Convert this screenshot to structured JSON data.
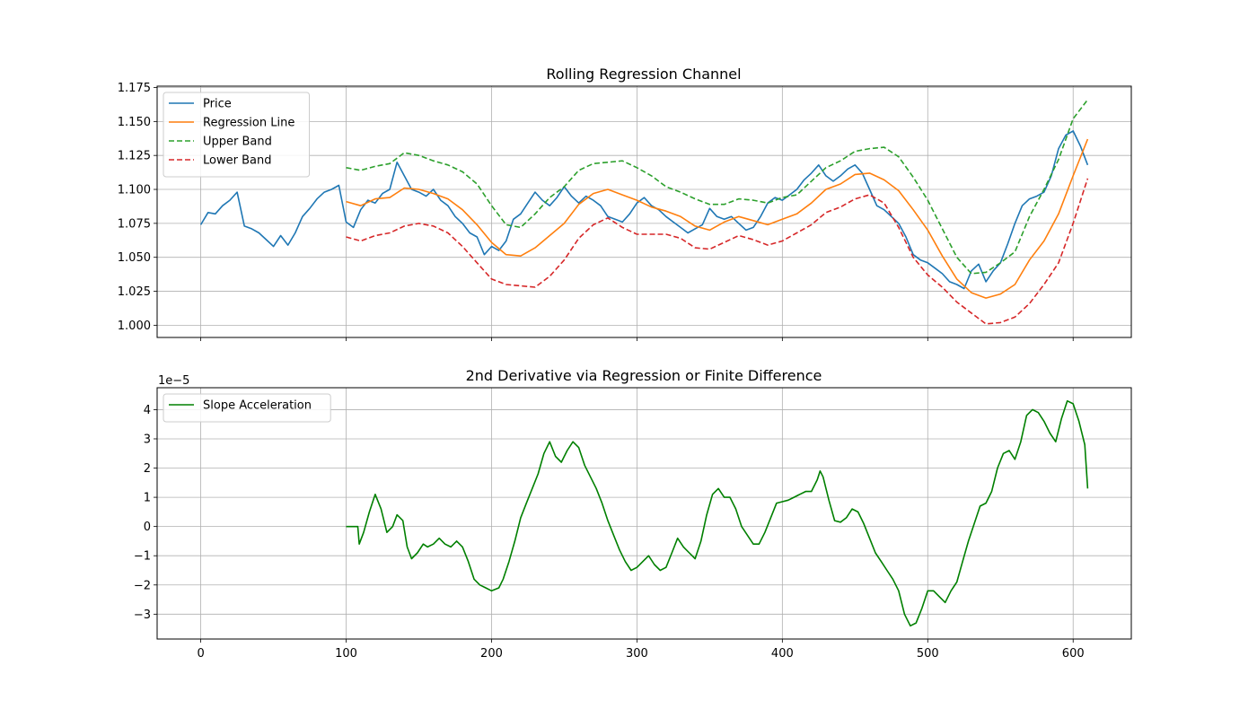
{
  "chart_data": [
    {
      "type": "line",
      "title": "Rolling Regression Channel",
      "xlabel": "",
      "ylabel": "",
      "xlim": [
        -30,
        640
      ],
      "ylim": [
        0.991,
        1.176
      ],
      "x_ticks": [
        0,
        100,
        200,
        300,
        400,
        500,
        600
      ],
      "show_x_tick_labels": false,
      "y_ticks": [
        1.0,
        1.025,
        1.05,
        1.075,
        1.1,
        1.125,
        1.15,
        1.175
      ],
      "y_tick_labels": [
        "1.000",
        "1.025",
        "1.050",
        "1.075",
        "1.100",
        "1.125",
        "1.150",
        "1.175"
      ],
      "grid": true,
      "legend_position": "upper-left",
      "series": [
        {
          "name": "Price",
          "color": "#1f77b4",
          "dash": "solid",
          "x": [
            0,
            5,
            10,
            15,
            20,
            25,
            30,
            35,
            40,
            45,
            50,
            55,
            60,
            65,
            70,
            75,
            80,
            85,
            90,
            95,
            100,
            105,
            110,
            115,
            120,
            125,
            130,
            135,
            140,
            145,
            150,
            155,
            160,
            165,
            170,
            175,
            180,
            185,
            190,
            195,
            200,
            205,
            210,
            215,
            220,
            225,
            230,
            235,
            240,
            245,
            250,
            255,
            260,
            265,
            270,
            275,
            280,
            285,
            290,
            295,
            300,
            305,
            310,
            315,
            320,
            325,
            330,
            335,
            340,
            345,
            350,
            355,
            360,
            365,
            370,
            375,
            380,
            385,
            390,
            395,
            400,
            405,
            410,
            415,
            420,
            425,
            430,
            435,
            440,
            445,
            450,
            455,
            460,
            465,
            470,
            475,
            480,
            485,
            490,
            495,
            500,
            505,
            510,
            515,
            520,
            525,
            530,
            535,
            540,
            545,
            550,
            555,
            560,
            565,
            570,
            575,
            580,
            585,
            590,
            595,
            600,
            605,
            610
          ],
          "y": [
            1.074,
            1.083,
            1.082,
            1.088,
            1.092,
            1.098,
            1.073,
            1.071,
            1.068,
            1.063,
            1.058,
            1.066,
            1.059,
            1.068,
            1.08,
            1.086,
            1.093,
            1.098,
            1.1,
            1.103,
            1.076,
            1.072,
            1.085,
            1.092,
            1.09,
            1.097,
            1.1,
            1.12,
            1.11,
            1.1,
            1.098,
            1.095,
            1.1,
            1.092,
            1.088,
            1.08,
            1.075,
            1.068,
            1.065,
            1.052,
            1.058,
            1.055,
            1.062,
            1.078,
            1.082,
            1.09,
            1.098,
            1.092,
            1.088,
            1.094,
            1.102,
            1.095,
            1.09,
            1.095,
            1.092,
            1.088,
            1.08,
            1.078,
            1.076,
            1.082,
            1.09,
            1.094,
            1.088,
            1.085,
            1.08,
            1.076,
            1.072,
            1.068,
            1.071,
            1.074,
            1.086,
            1.08,
            1.078,
            1.08,
            1.075,
            1.07,
            1.072,
            1.08,
            1.09,
            1.094,
            1.092,
            1.096,
            1.1,
            1.107,
            1.112,
            1.118,
            1.11,
            1.106,
            1.11,
            1.115,
            1.118,
            1.112,
            1.1,
            1.088,
            1.085,
            1.08,
            1.075,
            1.065,
            1.052,
            1.048,
            1.046,
            1.042,
            1.038,
            1.032,
            1.03,
            1.027,
            1.04,
            1.045,
            1.032,
            1.04,
            1.046,
            1.06,
            1.075,
            1.088,
            1.093,
            1.095,
            1.098,
            1.11,
            1.13,
            1.14,
            1.143,
            1.132,
            1.118
          ]
        },
        {
          "name": "Regression Line",
          "color": "#ff7f0e",
          "dash": "solid",
          "x": [
            100,
            110,
            120,
            130,
            140,
            150,
            160,
            170,
            180,
            190,
            200,
            210,
            220,
            230,
            240,
            250,
            260,
            270,
            280,
            290,
            300,
            310,
            320,
            330,
            340,
            350,
            360,
            370,
            380,
            390,
            400,
            410,
            420,
            430,
            440,
            450,
            460,
            470,
            480,
            490,
            500,
            510,
            520,
            530,
            540,
            550,
            560,
            570,
            580,
            590,
            600,
            610
          ],
          "y": [
            1.091,
            1.088,
            1.093,
            1.094,
            1.101,
            1.1,
            1.097,
            1.093,
            1.085,
            1.074,
            1.061,
            1.052,
            1.051,
            1.057,
            1.066,
            1.075,
            1.089,
            1.097,
            1.1,
            1.096,
            1.092,
            1.087,
            1.084,
            1.08,
            1.073,
            1.07,
            1.076,
            1.08,
            1.077,
            1.074,
            1.078,
            1.082,
            1.09,
            1.1,
            1.104,
            1.111,
            1.112,
            1.107,
            1.099,
            1.085,
            1.07,
            1.051,
            1.034,
            1.024,
            1.02,
            1.023,
            1.03,
            1.048,
            1.062,
            1.082,
            1.11,
            1.137
          ]
        },
        {
          "name": "Upper Band",
          "color": "#2ca02c",
          "dash": "dashed",
          "x": [
            100,
            110,
            120,
            130,
            140,
            150,
            160,
            170,
            180,
            190,
            200,
            210,
            220,
            230,
            240,
            250,
            260,
            270,
            280,
            290,
            300,
            310,
            320,
            330,
            340,
            350,
            360,
            370,
            380,
            390,
            400,
            410,
            420,
            430,
            440,
            450,
            460,
            470,
            480,
            490,
            500,
            510,
            520,
            530,
            540,
            550,
            560,
            570,
            580,
            590,
            600,
            610
          ],
          "y": [
            1.116,
            1.114,
            1.117,
            1.119,
            1.127,
            1.125,
            1.121,
            1.118,
            1.113,
            1.104,
            1.088,
            1.074,
            1.072,
            1.082,
            1.094,
            1.102,
            1.114,
            1.119,
            1.12,
            1.121,
            1.116,
            1.11,
            1.102,
            1.098,
            1.093,
            1.089,
            1.089,
            1.093,
            1.092,
            1.09,
            1.094,
            1.096,
            1.106,
            1.116,
            1.121,
            1.128,
            1.13,
            1.131,
            1.124,
            1.109,
            1.092,
            1.071,
            1.05,
            1.038,
            1.039,
            1.046,
            1.054,
            1.08,
            1.1,
            1.122,
            1.152,
            1.166
          ]
        },
        {
          "name": "Lower Band",
          "color": "#d62728",
          "dash": "dashed",
          "x": [
            100,
            110,
            120,
            130,
            140,
            150,
            160,
            170,
            180,
            190,
            200,
            210,
            220,
            230,
            240,
            250,
            260,
            270,
            280,
            290,
            300,
            310,
            320,
            330,
            340,
            350,
            360,
            370,
            380,
            390,
            400,
            410,
            420,
            430,
            440,
            450,
            460,
            470,
            480,
            490,
            500,
            510,
            520,
            530,
            540,
            550,
            560,
            570,
            580,
            590,
            600,
            610
          ],
          "y": [
            1.065,
            1.062,
            1.066,
            1.068,
            1.073,
            1.075,
            1.073,
            1.068,
            1.058,
            1.046,
            1.034,
            1.03,
            1.029,
            1.028,
            1.036,
            1.048,
            1.064,
            1.074,
            1.079,
            1.072,
            1.067,
            1.067,
            1.067,
            1.064,
            1.057,
            1.056,
            1.061,
            1.066,
            1.063,
            1.059,
            1.062,
            1.068,
            1.074,
            1.083,
            1.087,
            1.093,
            1.096,
            1.09,
            1.072,
            1.05,
            1.037,
            1.028,
            1.017,
            1.009,
            1.001,
            1.002,
            1.006,
            1.016,
            1.03,
            1.046,
            1.075,
            1.108
          ]
        }
      ]
    },
    {
      "type": "line",
      "title": "2nd Derivative via Regression or Finite Difference",
      "xlabel": "",
      "ylabel": "",
      "y_scale_label": "1e−5",
      "xlim": [
        -30,
        640
      ],
      "ylim": [
        -3.85,
        4.75
      ],
      "x_ticks": [
        0,
        100,
        200,
        300,
        400,
        500,
        600
      ],
      "x_tick_labels": [
        "0",
        "100",
        "200",
        "300",
        "400",
        "500",
        "600"
      ],
      "y_ticks": [
        -3,
        -2,
        -1,
        0,
        1,
        2,
        3,
        4
      ],
      "y_tick_labels": [
        "−3",
        "−2",
        "−1",
        "0",
        "1",
        "2",
        "3",
        "4"
      ],
      "grid": true,
      "legend_position": "upper-left",
      "series": [
        {
          "name": "Slope Acceleration",
          "color": "#008000",
          "dash": "solid",
          "x": [
            100,
            108,
            109,
            112,
            116,
            120,
            124,
            128,
            132,
            135,
            139,
            142,
            145,
            149,
            153,
            156,
            160,
            164,
            168,
            172,
            176,
            180,
            184,
            188,
            192,
            196,
            200,
            205,
            208,
            212,
            216,
            220,
            224,
            228,
            232,
            236,
            240,
            244,
            248,
            252,
            256,
            260,
            264,
            268,
            272,
            276,
            280,
            284,
            288,
            292,
            296,
            300,
            304,
            308,
            312,
            316,
            320,
            324,
            328,
            332,
            336,
            340,
            344,
            348,
            352,
            356,
            360,
            364,
            368,
            372,
            376,
            380,
            384,
            388,
            392,
            396,
            400,
            404,
            408,
            412,
            416,
            420,
            424,
            426,
            428,
            432,
            436,
            440,
            444,
            448,
            452,
            456,
            460,
            464,
            468,
            472,
            476,
            480,
            484,
            488,
            492,
            496,
            500,
            504,
            508,
            512,
            516,
            520,
            524,
            528,
            532,
            536,
            540,
            544,
            548,
            552,
            556,
            560,
            564,
            568,
            572,
            576,
            580,
            584,
            588,
            592,
            596,
            600,
            604,
            608,
            610
          ],
          "y": [
            0.0,
            0.0,
            -0.6,
            -0.2,
            0.5,
            1.1,
            0.6,
            -0.2,
            0.0,
            0.4,
            0.2,
            -0.7,
            -1.1,
            -0.9,
            -0.6,
            -0.7,
            -0.6,
            -0.4,
            -0.6,
            -0.7,
            -0.5,
            -0.7,
            -1.2,
            -1.8,
            -2.0,
            -2.1,
            -2.2,
            -2.1,
            -1.8,
            -1.2,
            -0.5,
            0.3,
            0.8,
            1.3,
            1.8,
            2.5,
            2.9,
            2.4,
            2.2,
            2.6,
            2.9,
            2.7,
            2.1,
            1.7,
            1.3,
            0.8,
            0.2,
            -0.3,
            -0.8,
            -1.2,
            -1.5,
            -1.4,
            -1.2,
            -1.0,
            -1.3,
            -1.5,
            -1.4,
            -0.9,
            -0.4,
            -0.7,
            -0.9,
            -1.1,
            -0.5,
            0.4,
            1.1,
            1.3,
            1.0,
            1.0,
            0.6,
            0.0,
            -0.3,
            -0.6,
            -0.6,
            -0.2,
            0.3,
            0.8,
            0.85,
            0.9,
            1.0,
            1.1,
            1.2,
            1.2,
            1.6,
            1.9,
            1.7,
            0.9,
            0.2,
            0.15,
            0.3,
            0.6,
            0.5,
            0.1,
            -0.4,
            -0.9,
            -1.2,
            -1.5,
            -1.8,
            -2.2,
            -3.0,
            -3.4,
            -3.3,
            -2.8,
            -2.2,
            -2.2,
            -2.4,
            -2.6,
            -2.2,
            -1.9,
            -1.2,
            -0.5,
            0.1,
            0.7,
            0.8,
            1.2,
            2.0,
            2.5,
            2.6,
            2.3,
            2.9,
            3.8,
            4.0,
            3.9,
            3.6,
            3.2,
            2.9,
            3.7,
            4.3,
            4.2,
            3.6,
            2.8,
            1.3
          ]
        }
      ]
    }
  ]
}
